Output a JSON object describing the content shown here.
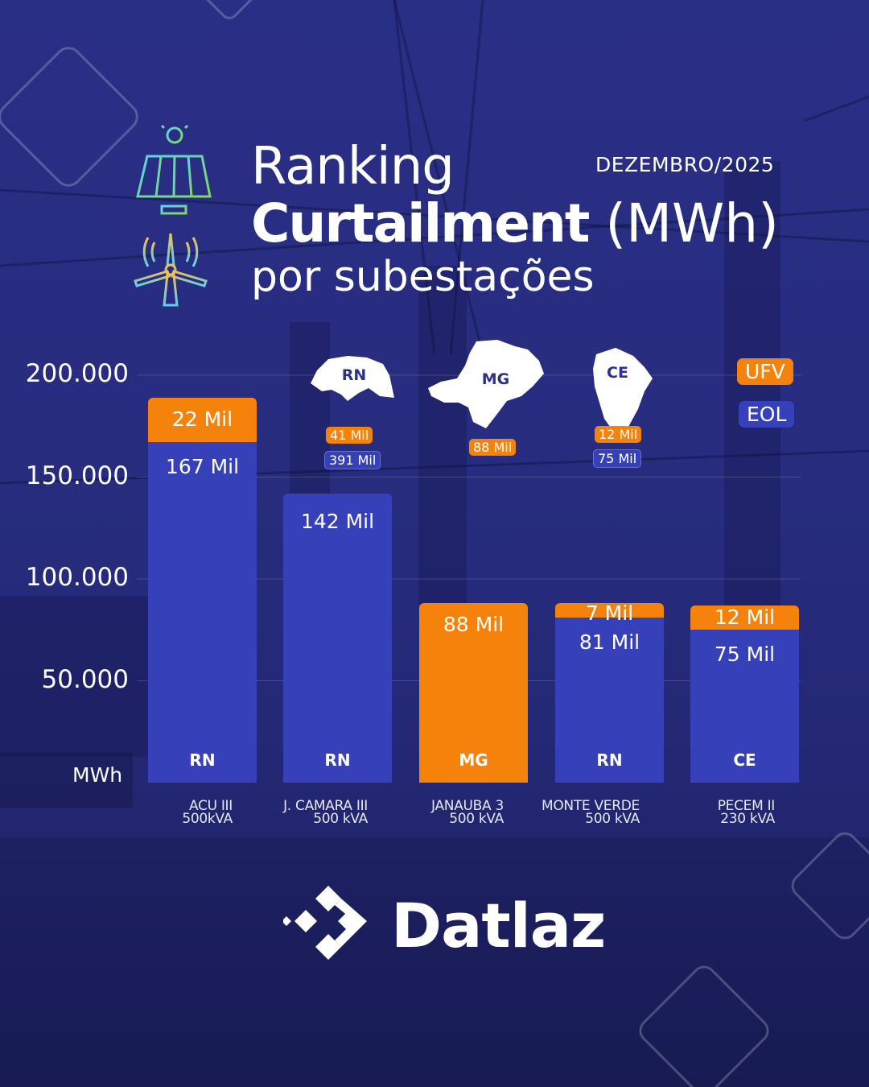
{
  "header": {
    "title_line1": "Ranking",
    "title_line2_bold": "Curtailment",
    "title_line2_unit": "(MWh)",
    "title_line3": "por subestações",
    "date": "DEZEMBRO/2025"
  },
  "icons": [
    "solar-panel-icon",
    "wind-turbine-icon"
  ],
  "chart_data": {
    "type": "bar",
    "stacked": true,
    "categories": [
      "ACU III 500kVA",
      "J. CAMARA III 500 kVA",
      "JANAUBA 3 500 kVA",
      "MONTE VERDE 500 kVA",
      "PECEM II 230 kVA"
    ],
    "category_lines": [
      [
        "ACU III",
        "500kVA"
      ],
      [
        "J. CAMARA III",
        "500 kVA"
      ],
      [
        "JANAUBA 3",
        "500 kVA"
      ],
      [
        "MONTE VERDE",
        "500 kVA"
      ],
      [
        "PECEM II",
        "230 kVA"
      ]
    ],
    "states": [
      "RN",
      "RN",
      "MG",
      "RN",
      "CE"
    ],
    "series": [
      {
        "name": "EOL",
        "values": [
          167000,
          142000,
          0,
          81000,
          75000
        ],
        "labels": [
          "167 Mil",
          "142 Mil",
          "",
          "81 Mil",
          "75 Mil"
        ],
        "color": "#3640b8"
      },
      {
        "name": "UFV",
        "values": [
          22000,
          0,
          88000,
          7000,
          12000
        ],
        "labels": [
          "22 Mil",
          "",
          "88 Mil",
          "7 Mil",
          "12 Mil"
        ],
        "color": "#f5820a"
      }
    ],
    "yticks": [
      "200.000",
      "150.000",
      "100.000",
      "50.000"
    ],
    "ytick_values": [
      200000,
      150000,
      100000,
      50000
    ],
    "ylabel": "MWh",
    "ylim": [
      0,
      200000
    ],
    "legend": {
      "placement": "top-right",
      "entries": [
        "UFV",
        "EOL"
      ]
    }
  },
  "state_totals": [
    {
      "state": "RN",
      "ufv": "41 Mil",
      "eol": "391 Mil"
    },
    {
      "state": "MG",
      "ufv": "88 Mil"
    },
    {
      "state": "CE",
      "ufv": "12 Mil",
      "eol": "75 Mil"
    }
  ],
  "brand": {
    "name": "Datlaz",
    "orange": "#f5820a",
    "blue": "#3640b8"
  }
}
